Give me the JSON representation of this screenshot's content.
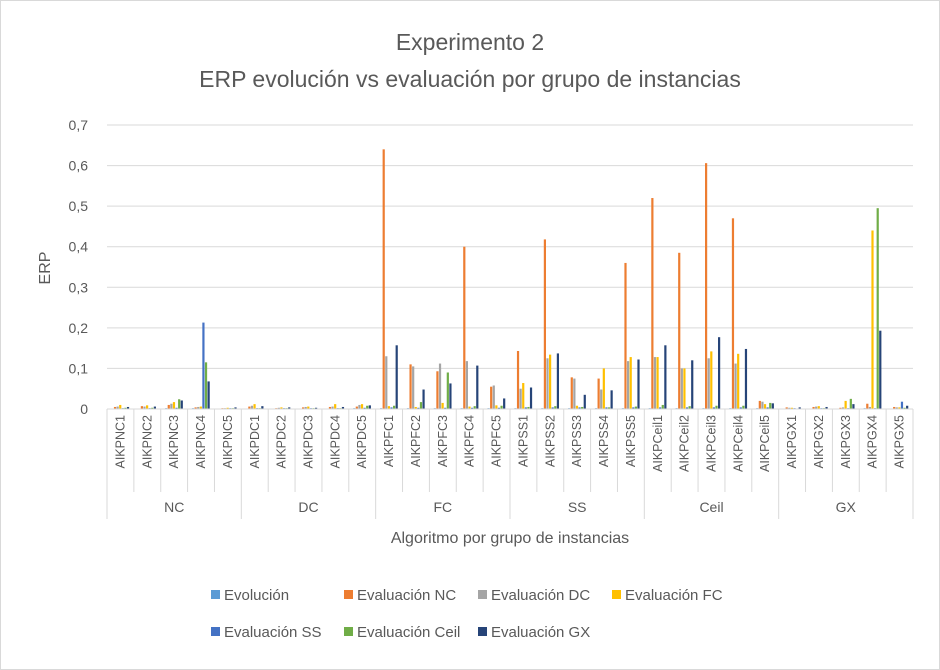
{
  "chart_data": {
    "type": "bar",
    "title": "Experimento 2",
    "subtitle": "ERP evolución vs evaluación por grupo de instancias",
    "xlabel": "Algoritmo por grupo de instancias",
    "ylabel": "ERP",
    "ylim": [
      0,
      0.7
    ],
    "yticks": [
      "0",
      "0,1",
      "0,2",
      "0,3",
      "0,4",
      "0,5",
      "0,6",
      "0,7"
    ],
    "grid": true,
    "legend_position": "bottom",
    "groups": [
      {
        "name": "NC",
        "categories": [
          "AIKPNC1",
          "AIKPNC2",
          "AIKPNC3",
          "AIKPNC4",
          "AIKPNC5"
        ]
      },
      {
        "name": "DC",
        "categories": [
          "AIKPDC1",
          "AIKPDC2",
          "AIKPDC3",
          "AIKPDC4",
          "AIKPDC5"
        ]
      },
      {
        "name": "FC",
        "categories": [
          "AIKPFC1",
          "AIKPFC2",
          "AIKPFC3",
          "AIKPFC4",
          "AIKPFC5"
        ]
      },
      {
        "name": "SS",
        "categories": [
          "AIKPSS1",
          "AIKPSS2",
          "AIKPSS3",
          "AIKPSS4",
          "AIKPSS5"
        ]
      },
      {
        "name": "Ceil",
        "categories": [
          "AIKPCeil1",
          "AIKPCeil2",
          "AIKPCeil3",
          "AIKPCeil4",
          "AIKPCeil5"
        ]
      },
      {
        "name": "GX",
        "categories": [
          "AIKPGX1",
          "AIKPGX2",
          "AIKPGX3",
          "AIKPGX4",
          "AIKPGX5"
        ]
      }
    ],
    "series": [
      {
        "name": "Evolución",
        "color": "#5b9bd5",
        "values": [
          0.001,
          0.001,
          0.002,
          0.002,
          0.001,
          0.001,
          0.001,
          0.001,
          0.001,
          0.002,
          0.002,
          0.002,
          0.002,
          0.002,
          0.002,
          0.002,
          0.002,
          0.002,
          0.002,
          0.002,
          0.002,
          0.002,
          0.002,
          0.002,
          0.002,
          0.001,
          0.001,
          0.001,
          0.002,
          0.001
        ]
      },
      {
        "name": "Evaluación NC",
        "color": "#ed7d31",
        "values": [
          0.005,
          0.007,
          0.01,
          0.004,
          0.002,
          0.006,
          0.002,
          0.004,
          0.005,
          0.006,
          0.64,
          0.11,
          0.093,
          0.4,
          0.055,
          0.143,
          0.418,
          0.078,
          0.075,
          0.36,
          0.52,
          0.385,
          0.606,
          0.47,
          0.02,
          0.004,
          0.005,
          0.003,
          0.013,
          0.005
        ]
      },
      {
        "name": "Evaluación DC",
        "color": "#a5a5a5",
        "values": [
          0.006,
          0.006,
          0.013,
          0.005,
          0.002,
          0.008,
          0.003,
          0.005,
          0.006,
          0.01,
          0.13,
          0.105,
          0.112,
          0.118,
          0.058,
          0.05,
          0.125,
          0.075,
          0.048,
          0.118,
          0.128,
          0.1,
          0.125,
          0.112,
          0.018,
          0.003,
          0.006,
          0.004,
          0.005,
          0.004
        ]
      },
      {
        "name": "Evaluación FC",
        "color": "#ffc000",
        "values": [
          0.01,
          0.009,
          0.017,
          0.006,
          0.003,
          0.012,
          0.004,
          0.006,
          0.012,
          0.012,
          0.007,
          0.005,
          0.015,
          0.006,
          0.009,
          0.064,
          0.134,
          0.008,
          0.1,
          0.128,
          0.128,
          0.1,
          0.142,
          0.136,
          0.012,
          0.003,
          0.007,
          0.02,
          0.44,
          0.004
        ]
      },
      {
        "name": "Evaluación SS",
        "color": "#4472c4",
        "values": [
          0.002,
          0.002,
          0.003,
          0.213,
          0.002,
          0.002,
          0.002,
          0.002,
          0.002,
          0.003,
          0.004,
          0.003,
          0.003,
          0.003,
          0.003,
          0.004,
          0.004,
          0.004,
          0.004,
          0.004,
          0.004,
          0.004,
          0.004,
          0.004,
          0.004,
          0.002,
          0.002,
          0.002,
          0.002,
          0.018
        ]
      },
      {
        "name": "Evaluación Ceil",
        "color": "#70ad47",
        "values": [
          0.003,
          0.003,
          0.024,
          0.115,
          0.002,
          0.002,
          0.002,
          0.002,
          0.002,
          0.008,
          0.008,
          0.017,
          0.09,
          0.007,
          0.008,
          0.005,
          0.007,
          0.005,
          0.004,
          0.006,
          0.01,
          0.007,
          0.008,
          0.008,
          0.015,
          0.001,
          0.002,
          0.025,
          0.495,
          0.003
        ]
      },
      {
        "name": "Evaluación GX",
        "color": "#264478",
        "values": [
          0.005,
          0.006,
          0.021,
          0.068,
          0.004,
          0.007,
          0.004,
          0.003,
          0.005,
          0.009,
          0.157,
          0.048,
          0.063,
          0.107,
          0.026,
          0.053,
          0.137,
          0.035,
          0.046,
          0.122,
          0.157,
          0.12,
          0.177,
          0.148,
          0.014,
          0.004,
          0.005,
          0.012,
          0.193,
          0.008
        ]
      }
    ]
  }
}
